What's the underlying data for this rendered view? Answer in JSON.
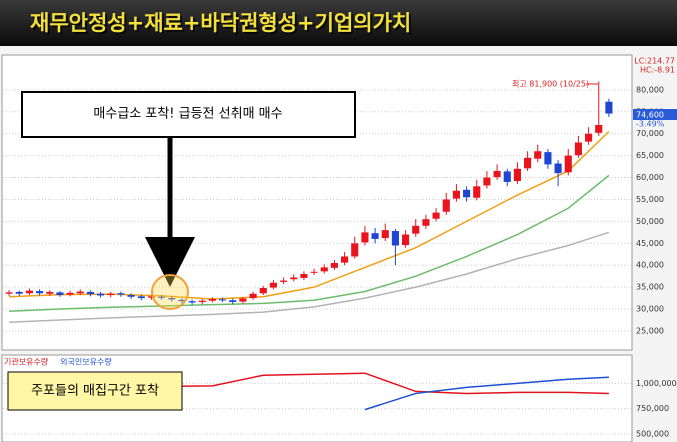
{
  "chart_data": [
    {
      "type": "candlestick",
      "title": "재무안정성+재료+바닥권형성+기업의가치",
      "open": [
        33500,
        33900,
        33600,
        34100,
        33500,
        33800,
        33300,
        33600,
        33900,
        33500,
        33200,
        33600,
        33200,
        32900,
        32600,
        32800,
        32500,
        32100,
        31800,
        31600,
        31900,
        32200,
        32000,
        31700,
        32500,
        33600,
        34900,
        36200,
        36800,
        37100,
        38300,
        38600,
        39400,
        40600,
        42000,
        45200,
        47300,
        46200,
        47800,
        44600,
        47200,
        49000,
        50600,
        52200,
        55200,
        57200,
        55400,
        58200,
        60100,
        61400,
        59200,
        62100,
        64300,
        65800,
        63200,
        61200,
        65100,
        68200,
        70200,
        77300
      ],
      "high": [
        34300,
        34200,
        34700,
        34500,
        34300,
        34100,
        34200,
        34500,
        34300,
        33900,
        33900,
        34000,
        33600,
        33300,
        33300,
        33200,
        32900,
        32500,
        32200,
        32300,
        32700,
        32600,
        32400,
        32800,
        34000,
        35300,
        36600,
        37200,
        37900,
        38600,
        39200,
        40200,
        41200,
        43000,
        46500,
        49000,
        48500,
        49500,
        48300,
        48000,
        50500,
        51500,
        53000,
        56500,
        58500,
        58000,
        59500,
        61500,
        63000,
        62000,
        63500,
        66000,
        67500,
        66500,
        64000,
        66500,
        69500,
        71500,
        81900,
        78000
      ],
      "low": [
        33000,
        33000,
        33200,
        33100,
        33000,
        32800,
        32900,
        33200,
        32900,
        32600,
        32700,
        32800,
        32300,
        32000,
        32100,
        32100,
        31700,
        31300,
        31000,
        31100,
        31500,
        31600,
        31100,
        31300,
        32100,
        33200,
        34500,
        35700,
        36300,
        36600,
        37800,
        38100,
        38900,
        40000,
        41500,
        44500,
        45000,
        45500,
        40000,
        44000,
        46500,
        48300,
        50000,
        51500,
        54500,
        54500,
        54800,
        57500,
        59500,
        58000,
        58500,
        61500,
        63500,
        62000,
        58000,
        60500,
        64500,
        67500,
        69500,
        73800
      ],
      "close": [
        33800,
        33500,
        34200,
        33600,
        33900,
        33200,
        33700,
        34000,
        33400,
        33100,
        33500,
        33300,
        32800,
        32500,
        32900,
        32600,
        32200,
        31800,
        31500,
        31900,
        32300,
        32100,
        31600,
        32400,
        33500,
        34800,
        36000,
        36500,
        37200,
        38000,
        38500,
        39500,
        40500,
        42000,
        45000,
        47500,
        46000,
        48000,
        44500,
        47000,
        49000,
        50500,
        52000,
        55000,
        57000,
        55500,
        58000,
        60000,
        61500,
        59000,
        62000,
        64500,
        66000,
        63000,
        61000,
        65000,
        68000,
        70000,
        72000,
        74600
      ],
      "up_color": "#e8141e",
      "down_color": "#1e46d2",
      "moving_averages": [
        {
          "color": "#f0a014",
          "x": [
            0,
            5,
            10,
            15,
            20,
            25,
            30,
            35,
            40,
            45,
            50,
            55,
            59
          ],
          "values": [
            32800,
            33300,
            33400,
            33000,
            32300,
            32800,
            35000,
            39500,
            44000,
            50000,
            56000,
            61500,
            70500
          ]
        },
        {
          "color": "#6cbc6c",
          "x": [
            0,
            5,
            10,
            15,
            20,
            25,
            30,
            35,
            40,
            45,
            50,
            55,
            59
          ],
          "values": [
            29500,
            30000,
            30400,
            30700,
            31000,
            31300,
            32000,
            34000,
            37500,
            42000,
            47000,
            53000,
            60500
          ]
        },
        {
          "color": "#b4b4b4",
          "x": [
            0,
            5,
            10,
            15,
            20,
            25,
            30,
            35,
            40,
            45,
            50,
            55,
            59
          ],
          "values": [
            27000,
            27500,
            28000,
            28400,
            28800,
            29300,
            30500,
            32500,
            35000,
            38000,
            41500,
            44500,
            47500
          ]
        }
      ],
      "ylim": [
        21800,
        87500
      ],
      "yticks": [
        {
          "value": 25000,
          "label": "25,000"
        },
        {
          "value": 30000,
          "label": "30,000"
        },
        {
          "value": 35000,
          "label": "35,000"
        },
        {
          "value": 40000,
          "label": "40,000"
        },
        {
          "value": 45000,
          "label": "45,000"
        },
        {
          "value": 50000,
          "label": "50,000"
        },
        {
          "value": 55000,
          "label": "55,000"
        },
        {
          "value": 60000,
          "label": "60,000"
        },
        {
          "value": 65000,
          "label": "65,000"
        },
        {
          "value": 70000,
          "label": "70,000"
        },
        {
          "value": 75000,
          "label": "75,000"
        },
        {
          "value": 80000,
          "label": "80,000"
        }
      ],
      "grid": true,
      "annotations": {
        "lc": "LC:214.77",
        "hc": "HC:-8.91",
        "high_note": "최고 81,900 (10/25)",
        "last_price": "74,600",
        "change": "-3.49%",
        "callout": "매수급소 포착! 급등전 선취매 매수"
      }
    },
    {
      "type": "line",
      "series": [
        {
          "name": "기관보유수량",
          "color": "#e0141e",
          "x": [
            0,
            5,
            10,
            15,
            20,
            25,
            30,
            35,
            40,
            45,
            50,
            55,
            59
          ],
          "values": [
            960000,
            965000,
            965000,
            970000,
            975000,
            1080000,
            1090000,
            1100000,
            920000,
            900000,
            910000,
            910000,
            900000
          ]
        },
        {
          "name": "외국인보유수량",
          "color": "#1e50d2",
          "x": [
            0,
            5,
            10,
            15,
            20,
            25,
            30,
            35,
            40,
            45,
            50,
            55,
            59
          ],
          "values": [
            null,
            null,
            null,
            null,
            null,
            null,
            null,
            740000,
            900000,
            960000,
            1000000,
            1040000,
            1060000
          ]
        }
      ],
      "ylim": [
        420000,
        1280000
      ],
      "yticks": [
        {
          "value": 500000,
          "label": "500,000"
        },
        {
          "value": 750000,
          "label": "750,000"
        },
        {
          "value": 1000000,
          "label": "1,000,000"
        }
      ],
      "grid": true,
      "annotations": {
        "callout": "주포들의 매집구간 포착"
      }
    }
  ]
}
